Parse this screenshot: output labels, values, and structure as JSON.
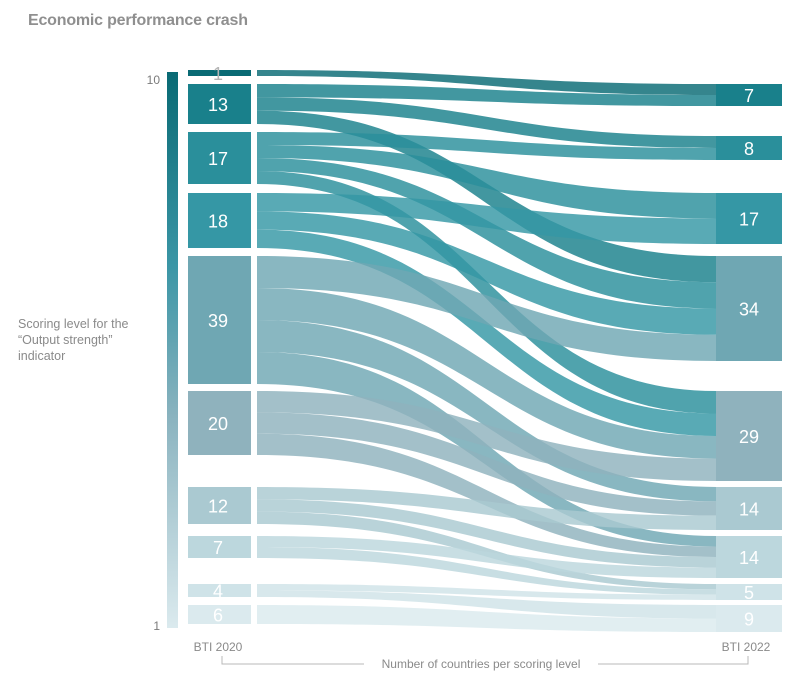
{
  "title": "Economic performance crash",
  "chart_data": {
    "type": "sankey",
    "title": "Economic performance crash",
    "ylabel": "Scoring level for the “Output strength” indicator",
    "xlabel": "Number of countries per scoring level",
    "y_top_label": "10",
    "y_bottom_label": "1",
    "left_label": "BTI 2020",
    "right_label": "BTI 2022",
    "levels": [
      10,
      9,
      8,
      7,
      6,
      5,
      4,
      3,
      2,
      1
    ],
    "left_counts": [
      "1",
      "13",
      "17",
      "18",
      "39",
      "20",
      "12",
      "7",
      "4",
      "6"
    ],
    "right_counts": [
      "",
      "7",
      "8",
      "17",
      "34",
      "29",
      "14",
      "14",
      "5",
      "9"
    ],
    "colors": {
      "top": "#096a74",
      "bottom": "#dbeaee",
      "label_dark": "#ffffff",
      "label_light": "#ffffff",
      "label_faint": "#b5b5b5"
    }
  }
}
